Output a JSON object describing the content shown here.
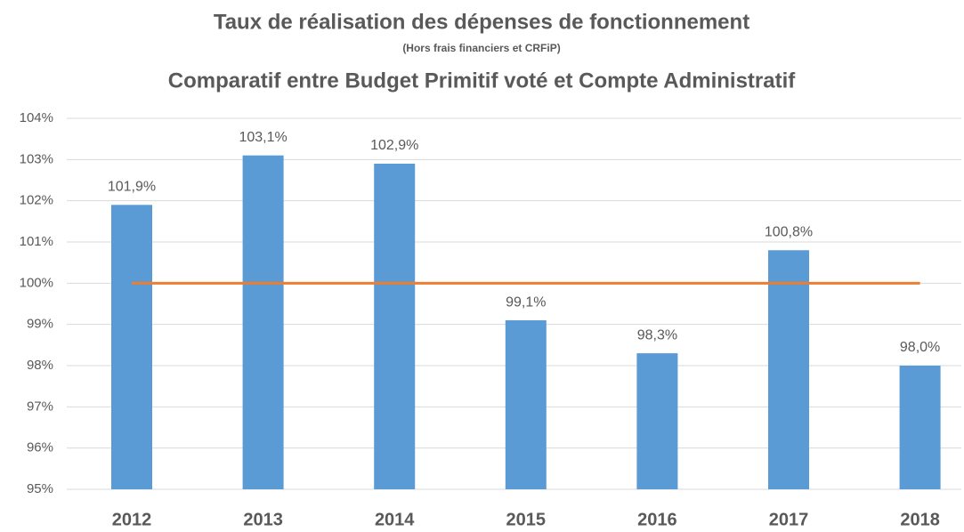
{
  "chart_data": {
    "type": "bar",
    "title": "Taux de réalisation des dépenses de fonctionnement",
    "subtitle": "(Hors frais financiers et CRFiP)",
    "title2": "Comparatif entre Budget Primitif voté et Compte Administratif",
    "categories": [
      "2012",
      "2013",
      "2014",
      "2015",
      "2016",
      "2017",
      "2018"
    ],
    "values": [
      101.9,
      103.1,
      102.9,
      99.1,
      98.3,
      100.8,
      98.0
    ],
    "value_labels": [
      "101,9%",
      "103,1%",
      "102,9%",
      "99,1%",
      "98,3%",
      "100,8%",
      "98,0%"
    ],
    "color": "#5b9bd5",
    "line_values": [
      100,
      100,
      100,
      100,
      100,
      100,
      100
    ],
    "line_color": "#ed7d31",
    "ylim": [
      95,
      104
    ],
    "yticks": [
      {
        "value": 95,
        "label": "95%"
      },
      {
        "value": 96,
        "label": "96%"
      },
      {
        "value": 97,
        "label": "97%"
      },
      {
        "value": 98,
        "label": "98%"
      },
      {
        "value": 99,
        "label": "99%"
      },
      {
        "value": 100,
        "label": "100%"
      },
      {
        "value": 101,
        "label": "101%"
      },
      {
        "value": 102,
        "label": "102%"
      },
      {
        "value": 103,
        "label": "103%"
      },
      {
        "value": 104,
        "label": "104%"
      }
    ],
    "grid": true
  }
}
